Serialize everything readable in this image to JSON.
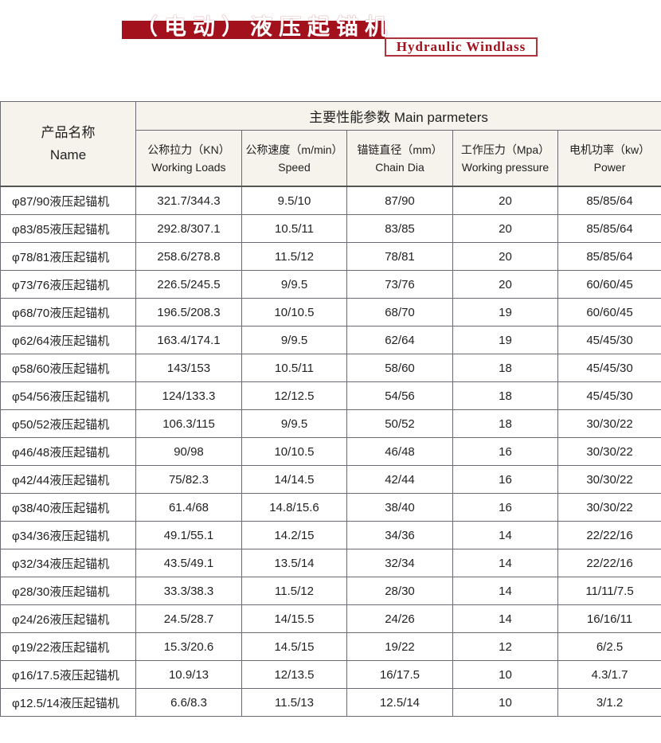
{
  "header": {
    "title": "（电动）液压起锚机",
    "subtitle": "Hydraulic Windlass",
    "accent": "#a3111c"
  },
  "table": {
    "name_header": {
      "cn": "产品名称",
      "en": "Name"
    },
    "group_header": "主要性能参数  Main parmeters",
    "columns": [
      {
        "cn": "公称拉力（KN）",
        "en": "Working Loads"
      },
      {
        "cn": "公称速度（m/min）",
        "en": "Speed"
      },
      {
        "cn": "锚链直径（mm）",
        "en": "Chain Dia"
      },
      {
        "cn": "工作压力（Mpa）",
        "en": "Working pressure"
      },
      {
        "cn": "电机功率（kw）",
        "en": "Power"
      }
    ],
    "rows": [
      [
        "φ87/90液压起锚机",
        "321.7/344.3",
        "9.5/10",
        "87/90",
        "20",
        "85/85/64"
      ],
      [
        "φ83/85液压起锚机",
        "292.8/307.1",
        "10.5/11",
        "83/85",
        "20",
        "85/85/64"
      ],
      [
        "φ78/81液压起锚机",
        "258.6/278.8",
        "11.5/12",
        "78/81",
        "20",
        "85/85/64"
      ],
      [
        "φ73/76液压起锚机",
        "226.5/245.5",
        "9/9.5",
        "73/76",
        "20",
        "60/60/45"
      ],
      [
        "φ68/70液压起锚机",
        "196.5/208.3",
        "10/10.5",
        "68/70",
        "19",
        "60/60/45"
      ],
      [
        "φ62/64液压起锚机",
        "163.4/174.1",
        "9/9.5",
        "62/64",
        "19",
        "45/45/30"
      ],
      [
        "φ58/60液压起锚机",
        "143/153",
        "10.5/11",
        "58/60",
        "18",
        "45/45/30"
      ],
      [
        "φ54/56液压起锚机",
        "124/133.3",
        "12/12.5",
        "54/56",
        "18",
        "45/45/30"
      ],
      [
        "φ50/52液压起锚机",
        "106.3/115",
        "9/9.5",
        "50/52",
        "18",
        "30/30/22"
      ],
      [
        "φ46/48液压起锚机",
        "90/98",
        "10/10.5",
        "46/48",
        "16",
        "30/30/22"
      ],
      [
        "φ42/44液压起锚机",
        "75/82.3",
        "14/14.5",
        "42/44",
        "16",
        "30/30/22"
      ],
      [
        "φ38/40液压起锚机",
        "61.4/68",
        "14.8/15.6",
        "38/40",
        "16",
        "30/30/22"
      ],
      [
        "φ34/36液压起锚机",
        "49.1/55.1",
        "14.2/15",
        "34/36",
        "14",
        "22/22/16"
      ],
      [
        "φ32/34液压起锚机",
        "43.5/49.1",
        "13.5/14",
        "32/34",
        "14",
        "22/22/16"
      ],
      [
        "φ28/30液压起锚机",
        "33.3/38.3",
        "11.5/12",
        "28/30",
        "14",
        "11/11/7.5"
      ],
      [
        "φ24/26液压起锚机",
        "24.5/28.7",
        "14/15.5",
        "24/26",
        "14",
        "16/16/11"
      ],
      [
        "φ19/22液压起锚机",
        "15.3/20.6",
        "14.5/15",
        "19/22",
        "12",
        "6/2.5"
      ],
      [
        "φ16/17.5液压起锚机",
        "10.9/13",
        "12/13.5",
        "16/17.5",
        "10",
        "4.3/1.7"
      ],
      [
        "φ12.5/14液压起锚机",
        "6.6/8.3",
        "11.5/13",
        "12.5/14",
        "10",
        "3/1.2"
      ]
    ]
  }
}
